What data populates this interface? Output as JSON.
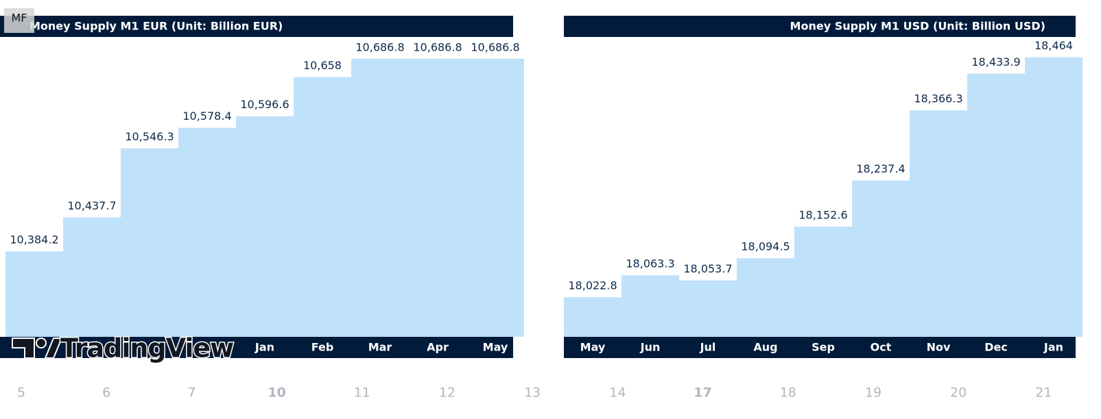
{
  "symbol": "MF",
  "logo": "TradingView",
  "time_axis": [
    "5",
    "6",
    "7",
    "10",
    "11",
    "12",
    "13",
    "14",
    "17",
    "18",
    "19",
    "20",
    "21"
  ],
  "chart_data": [
    {
      "type": "step-bar",
      "title": "Money Supply M1 EUR (Unit: Billion EUR)",
      "categories": [
        null,
        null,
        null,
        null,
        "Jan",
        "Feb",
        "Mar",
        "Apr",
        "May"
      ],
      "values": [
        10384.2,
        10437.7,
        10546.3,
        10578.4,
        10596.6,
        10658,
        10686.8,
        10686.8,
        10686.8
      ],
      "value_labels": [
        "10,384.2",
        "10,437.7",
        "10,546.3",
        "10,578.4",
        "10,596.6",
        "10,658",
        "10,686.8",
        "10,686.8",
        "10,686.8"
      ],
      "color": "#bfe1fa",
      "ylim": [
        10250,
        10720
      ]
    },
    {
      "type": "step-bar",
      "title": "Money Supply M1 USD (Unit: Billion USD)",
      "categories": [
        "May",
        "Jun",
        "Jul",
        "Aug",
        "Sep",
        "Oct",
        "Nov",
        "Dec",
        "Jan"
      ],
      "values": [
        18022.8,
        18063.3,
        18053.7,
        18094.5,
        18152.6,
        18237.4,
        18366.3,
        18433.9,
        18464
      ],
      "value_labels": [
        "18,022.8",
        "18,063.3",
        "18,053.7",
        "18,094.5",
        "18,152.6",
        "18,237.4",
        "18,366.3",
        "18,433.9",
        "18,464"
      ],
      "color": "#bfe1fa",
      "ylim": [
        17950,
        18500
      ]
    }
  ]
}
